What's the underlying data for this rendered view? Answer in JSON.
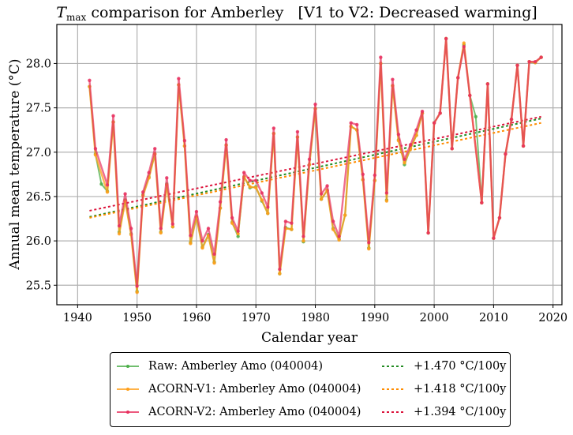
{
  "chart_data": {
    "type": "line",
    "title_main": "T",
    "title_sub": "max",
    "title_rest": " comparison for Amberley   [V1 to V2: Decreased warming]",
    "xlabel": "Calendar year",
    "ylabel": "Annual mean temperature (°C)",
    "xlim": [
      1936.5,
      2021.5
    ],
    "ylim": [
      25.28,
      28.44
    ],
    "xticks": [
      1940,
      1950,
      1960,
      1970,
      1980,
      1990,
      2000,
      2010,
      2020
    ],
    "yticks": [
      25.5,
      26.0,
      26.5,
      27.0,
      27.5,
      28.0
    ],
    "ytick_labels": [
      "25.5",
      "26.0",
      "26.5",
      "27.0",
      "27.5",
      "28.0"
    ],
    "grid": true,
    "legend_position": "below-center",
    "series": [
      {
        "name": "Raw: Amberley Amo (040004)",
        "color": "#4daf4a",
        "x": [
          1942,
          1943,
          1944,
          1945,
          1946,
          1947,
          1948,
          1949,
          1950,
          1951,
          1952,
          1953,
          1954,
          1955,
          1956,
          1957,
          1958,
          1959,
          1960,
          1961,
          1962,
          1963,
          1964,
          1965,
          1966,
          1967,
          1968,
          1969,
          1970,
          1971,
          1972,
          1973,
          1974,
          1975,
          1976,
          1977,
          1978,
          1979,
          1980,
          1981,
          1982,
          1983,
          1984,
          1985,
          1986,
          1987,
          1988,
          1989,
          1990,
          1991,
          1992,
          1993,
          1994,
          1995,
          1996,
          1997,
          1998,
          1999,
          2000,
          2001,
          2002,
          2003,
          2004,
          2005,
          2006,
          2007,
          2008,
          2009,
          2010,
          2011,
          2012,
          2013,
          2014,
          2015,
          2016,
          2017,
          2018
        ],
        "y": [
          27.74,
          26.98,
          26.64,
          26.56,
          27.34,
          26.1,
          26.46,
          26.08,
          25.43,
          26.52,
          26.72,
          26.98,
          26.1,
          26.64,
          26.16,
          27.76,
          27.07,
          25.98,
          26.27,
          25.93,
          26.07,
          25.76,
          26.37,
          27.08,
          26.21,
          26.05,
          26.72,
          26.6,
          26.61,
          26.45,
          26.31,
          27.21,
          25.63,
          26.15,
          26.13,
          27.17,
          25.99,
          26.86,
          27.49,
          26.47,
          26.57,
          26.14,
          26.02,
          26.29,
          27.29,
          27.25,
          26.69,
          25.92,
          26.68,
          28.0,
          26.46,
          27.75,
          27.14,
          26.86,
          27.04,
          27.19,
          27.44,
          26.09,
          27.33,
          27.44,
          28.28,
          27.04,
          27.84,
          28.21,
          27.64,
          27.4,
          26.43,
          27.77,
          26.03,
          26.26,
          26.98,
          27.37,
          27.98,
          27.07,
          28.02,
          28.01,
          28.07
        ]
      },
      {
        "name": "ACORN-V1: Amberley Amo (040004)",
        "color": "#ff9f1a",
        "x": [
          1942,
          1943,
          1945,
          1946,
          1947,
          1948,
          1949,
          1950,
          1951,
          1952,
          1953,
          1954,
          1955,
          1956,
          1957,
          1958,
          1959,
          1960,
          1961,
          1962,
          1963,
          1964,
          1965,
          1966,
          1967,
          1968,
          1969,
          1970,
          1971,
          1972,
          1973,
          1974,
          1975,
          1976,
          1977,
          1978,
          1979,
          1980,
          1981,
          1982,
          1983,
          1984,
          1985,
          1986,
          1987,
          1988,
          1989,
          1990,
          1991,
          1992,
          1993,
          1994,
          1995,
          1996,
          1997,
          1998,
          1999,
          2000,
          2001,
          2002,
          2003,
          2004,
          2005,
          2006,
          2008,
          2009,
          2010,
          2011,
          2012,
          2013,
          2014,
          2015,
          2016,
          2017,
          2018
        ],
        "y": [
          27.74,
          26.97,
          26.55,
          27.34,
          26.08,
          26.45,
          26.07,
          25.42,
          26.51,
          26.71,
          26.98,
          26.09,
          26.63,
          26.16,
          27.76,
          27.07,
          25.97,
          26.27,
          25.92,
          26.06,
          25.75,
          26.37,
          27.08,
          26.2,
          26.08,
          26.72,
          26.61,
          26.6,
          26.46,
          26.31,
          27.21,
          25.63,
          26.14,
          26.13,
          27.17,
          26.0,
          26.86,
          27.49,
          26.47,
          26.57,
          26.13,
          26.01,
          26.29,
          27.29,
          27.25,
          26.69,
          25.91,
          26.68,
          28.0,
          26.45,
          27.75,
          27.13,
          26.88,
          27.04,
          27.19,
          27.44,
          26.09,
          27.33,
          27.44,
          28.28,
          27.04,
          27.84,
          28.23,
          27.64,
          26.43,
          27.77,
          26.03,
          26.26,
          26.98,
          27.37,
          27.98,
          27.07,
          28.02,
          28.01,
          28.07
        ]
      },
      {
        "name": "ACORN-V2: Amberley Amo (040004)",
        "color": "#e8305f",
        "x": [
          1942,
          1943,
          1945,
          1946,
          1947,
          1948,
          1949,
          1950,
          1951,
          1952,
          1953,
          1954,
          1955,
          1956,
          1957,
          1958,
          1959,
          1960,
          1961,
          1962,
          1963,
          1964,
          1965,
          1966,
          1967,
          1968,
          1969,
          1970,
          1971,
          1972,
          1973,
          1974,
          1975,
          1976,
          1977,
          1978,
          1979,
          1980,
          1981,
          1982,
          1983,
          1984,
          1986,
          1987,
          1988,
          1989,
          1990,
          1991,
          1992,
          1993,
          1994,
          1995,
          1996,
          1997,
          1998,
          1999,
          2000,
          2001,
          2002,
          2003,
          2004,
          2005,
          2006,
          2008,
          2009,
          2010,
          2011,
          2012,
          2013,
          2014,
          2015,
          2016,
          2017,
          2018
        ],
        "y": [
          27.81,
          27.04,
          26.63,
          27.41,
          26.17,
          26.53,
          26.14,
          25.49,
          26.55,
          26.77,
          27.04,
          26.14,
          26.71,
          26.19,
          27.83,
          27.13,
          26.06,
          26.33,
          26.0,
          26.14,
          25.85,
          26.44,
          27.14,
          26.26,
          26.11,
          26.77,
          26.68,
          26.68,
          26.54,
          26.38,
          27.27,
          25.68,
          26.22,
          26.2,
          27.23,
          26.05,
          26.92,
          27.54,
          26.53,
          26.62,
          26.22,
          26.05,
          27.33,
          27.31,
          26.75,
          25.98,
          26.74,
          28.07,
          26.54,
          27.82,
          27.2,
          26.92,
          27.08,
          27.25,
          27.46,
          26.09,
          27.33,
          27.44,
          28.28,
          27.04,
          27.84,
          28.19,
          27.64,
          26.43,
          27.77,
          26.03,
          26.26,
          26.98,
          27.37,
          27.98,
          27.07,
          28.02,
          28.02,
          28.07
        ]
      }
    ],
    "trends": [
      {
        "label": "+1.470 °C/100y",
        "color": "#228b22",
        "x": [
          1942,
          2018
        ],
        "y": [
          26.27,
          27.38
        ]
      },
      {
        "label": "+1.418 °C/100y",
        "color": "#ff8c00",
        "x": [
          1942,
          2018
        ],
        "y": [
          26.26,
          27.33
        ]
      },
      {
        "label": "+1.394 °C/100y",
        "color": "#dc143c",
        "x": [
          1942,
          2018
        ],
        "y": [
          26.34,
          27.4
        ]
      }
    ]
  }
}
